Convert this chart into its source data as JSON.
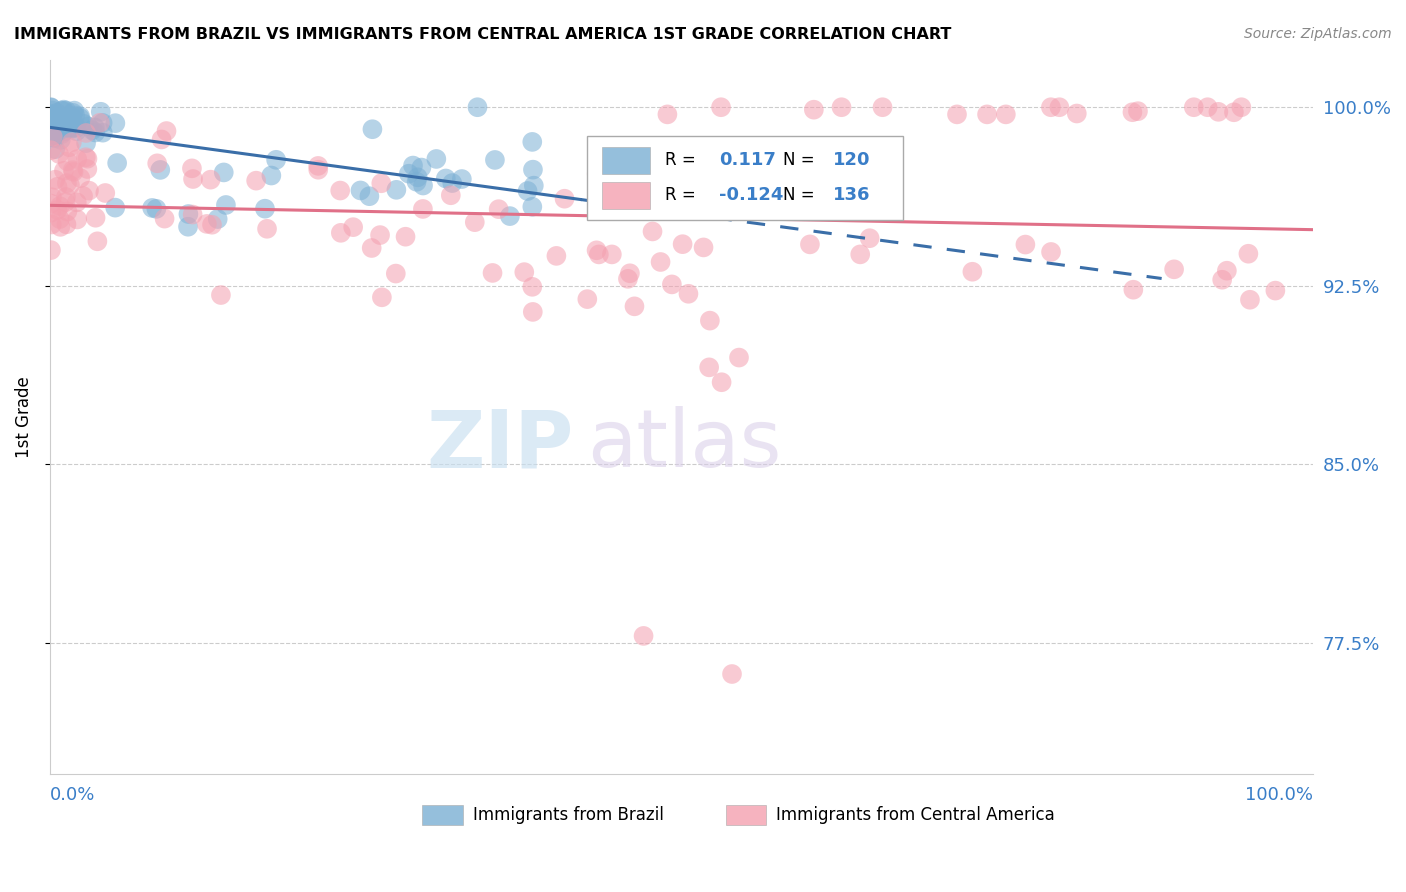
{
  "title": "IMMIGRANTS FROM BRAZIL VS IMMIGRANTS FROM CENTRAL AMERICA 1ST GRADE CORRELATION CHART",
  "source": "Source: ZipAtlas.com",
  "ylabel": "1st Grade",
  "ytick_labels": [
    "100.0%",
    "92.5%",
    "85.0%",
    "77.5%"
  ],
  "ytick_values": [
    1.0,
    0.925,
    0.85,
    0.775
  ],
  "xlim": [
    0.0,
    1.0
  ],
  "ylim": [
    0.72,
    1.02
  ],
  "brazil_R": 0.117,
  "brazil_N": 120,
  "central_R": -0.124,
  "central_N": 136,
  "brazil_color": "#7bafd4",
  "central_color": "#f4a0b0",
  "brazil_line_color": "#3a6ea8",
  "central_line_color": "#e07088",
  "legend_label_brazil": "Immigrants from Brazil",
  "legend_label_central": "Immigrants from Central America"
}
